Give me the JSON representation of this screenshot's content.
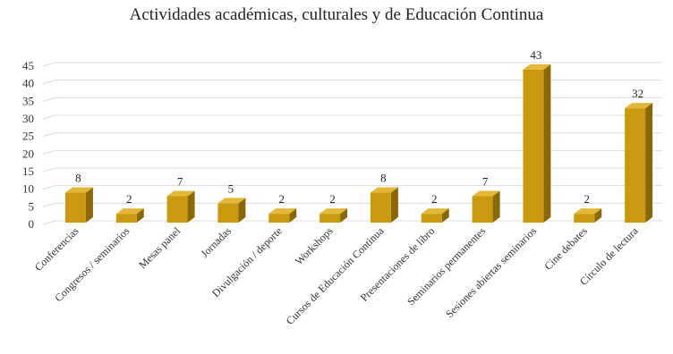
{
  "chart_data": {
    "type": "bar",
    "title": "Actividades académicas, culturales y de Educación Continua",
    "categories": [
      "Conferencias",
      "Congresos / seminarios",
      "Mesas panel",
      "Jornadas",
      "Divulgación / deporte",
      "Workshops",
      "Cursos de Educación Continua",
      "Presentaciones de libro",
      "Seminarios permanentes",
      "Sesiones abiertas seminarios",
      "Cine debates",
      "Círculo de lectura"
    ],
    "values": [
      8,
      2,
      7,
      5,
      2,
      2,
      8,
      2,
      7,
      43,
      2,
      32
    ],
    "ylim": [
      0,
      45
    ],
    "yticks": [
      0,
      5,
      10,
      15,
      20,
      25,
      30,
      35,
      40,
      45
    ],
    "grid": true,
    "colors": {
      "bar_front": "#c99a10",
      "bar_side": "#8a6806",
      "bar_top": "#e3b73a",
      "grid": "#dcdcdc"
    }
  }
}
